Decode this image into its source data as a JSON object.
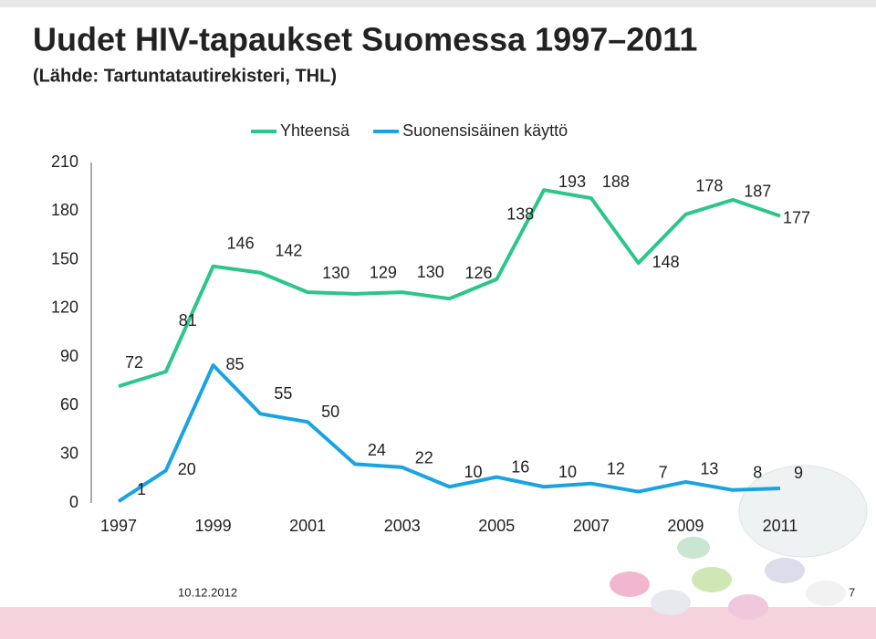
{
  "chart_data": {
    "type": "line",
    "title": "Uudet HIV-tapaukset Suomessa 1997–2011",
    "subtitle": "(Lähde: Tartuntatautirekisteri, THL)",
    "x": [
      1997,
      1998,
      1999,
      2000,
      2001,
      2002,
      2003,
      2004,
      2005,
      2006,
      2007,
      2008,
      2009,
      2010,
      2011
    ],
    "xlim": [
      1997,
      2011
    ],
    "xticks": [
      1997,
      1999,
      2001,
      2003,
      2005,
      2007,
      2009,
      2011
    ],
    "ylim": [
      0,
      210
    ],
    "yticks": [
      0,
      30,
      60,
      90,
      120,
      150,
      180,
      210
    ],
    "legend": "top",
    "series": [
      {
        "name": "Yhteensä",
        "color": "#2cc68a",
        "values": [
          72,
          81,
          146,
          142,
          130,
          129,
          130,
          126,
          138,
          193,
          188,
          148,
          178,
          187,
          177
        ]
      },
      {
        "name": "Suonensisäinen käyttö",
        "color": "#1aa3e2",
        "values": [
          1,
          20,
          85,
          55,
          50,
          24,
          22,
          10,
          16,
          10,
          12,
          7,
          13,
          8,
          9
        ]
      }
    ]
  },
  "footer": {
    "date": "10.12.2012",
    "page": "7"
  }
}
